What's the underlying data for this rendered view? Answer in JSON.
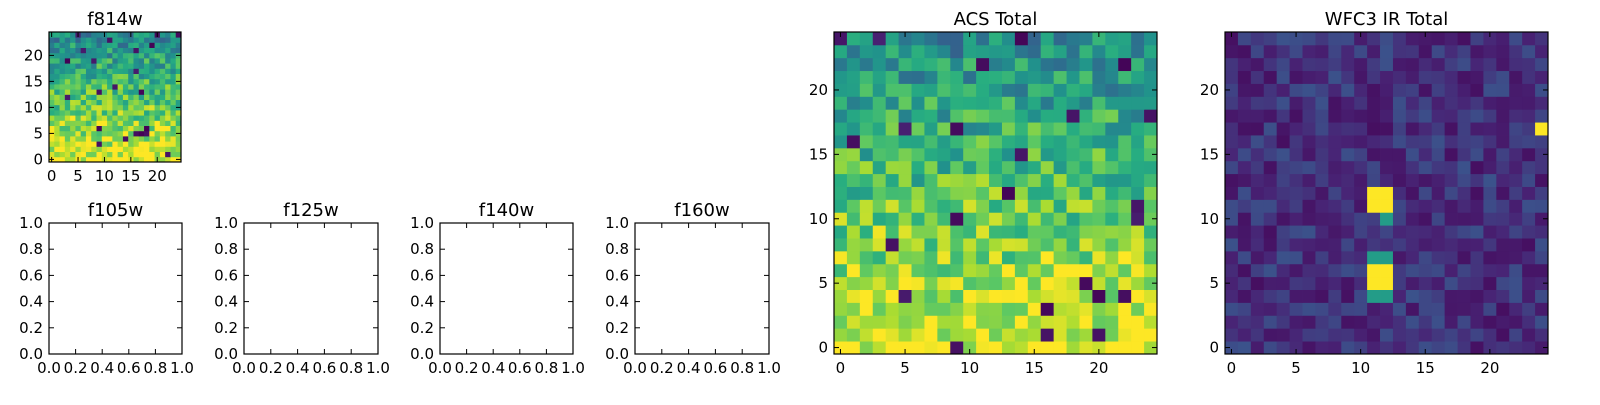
{
  "chart_data": [
    {
      "type": "heatmap",
      "id": "f814w",
      "title": "f814w",
      "xlim": [
        -0.5,
        24.5
      ],
      "ylim": [
        -0.5,
        24.5
      ],
      "xticks": [
        0,
        5,
        10,
        15,
        20
      ],
      "yticks": [
        0,
        5,
        10,
        15,
        20
      ],
      "grid_size": 25,
      "colormap": "viridis",
      "pattern": "bright-bottom"
    },
    {
      "type": "heatmap",
      "id": "f105w",
      "title": "f105w",
      "xlim": [
        0,
        1
      ],
      "ylim": [
        0,
        1
      ],
      "xticks": [
        0.0,
        0.2,
        0.4,
        0.6,
        0.8,
        1.0
      ],
      "yticks": [
        0.0,
        0.2,
        0.4,
        0.6,
        0.8,
        1.0
      ],
      "empty": true
    },
    {
      "type": "heatmap",
      "id": "f125w",
      "title": "f125w",
      "xlim": [
        0,
        1
      ],
      "ylim": [
        0,
        1
      ],
      "xticks": [
        0.0,
        0.2,
        0.4,
        0.6,
        0.8,
        1.0
      ],
      "yticks": [
        0.0,
        0.2,
        0.4,
        0.6,
        0.8,
        1.0
      ],
      "empty": true
    },
    {
      "type": "heatmap",
      "id": "f140w",
      "title": "f140w",
      "xlim": [
        0,
        1
      ],
      "ylim": [
        0,
        1
      ],
      "xticks": [
        0.0,
        0.2,
        0.4,
        0.6,
        0.8,
        1.0
      ],
      "yticks": [
        0.0,
        0.2,
        0.4,
        0.6,
        0.8,
        1.0
      ],
      "empty": true
    },
    {
      "type": "heatmap",
      "id": "f160w",
      "title": "f160w",
      "xlim": [
        0,
        1
      ],
      "ylim": [
        0,
        1
      ],
      "xticks": [
        0.0,
        0.2,
        0.4,
        0.6,
        0.8,
        1.0
      ],
      "yticks": [
        0.0,
        0.2,
        0.4,
        0.6,
        0.8,
        1.0
      ],
      "empty": true
    },
    {
      "type": "heatmap",
      "id": "acs-total",
      "title": "ACS Total",
      "xlim": [
        -0.5,
        24.5
      ],
      "ylim": [
        -0.5,
        24.5
      ],
      "xticks": [
        0,
        5,
        10,
        15,
        20
      ],
      "yticks": [
        0,
        5,
        10,
        15,
        20
      ],
      "grid_size": 25,
      "colormap": "viridis",
      "pattern": "bright-bottom"
    },
    {
      "type": "heatmap",
      "id": "wfc3-ir-total",
      "title": "WFC3 IR Total",
      "xlim": [
        -0.5,
        24.5
      ],
      "ylim": [
        -0.5,
        24.5
      ],
      "xticks": [
        0,
        5,
        10,
        15,
        20
      ],
      "yticks": [
        0,
        5,
        10,
        15,
        20
      ],
      "grid_size": 25,
      "colormap": "viridis",
      "pattern": "dark-with-sources",
      "bright_pixels": [
        [
          11,
          11
        ],
        [
          12,
          11
        ],
        [
          11,
          12
        ],
        [
          12,
          12
        ],
        [
          11,
          5
        ],
        [
          12,
          5
        ],
        [
          11,
          6
        ],
        [
          12,
          6
        ],
        [
          24,
          17
        ]
      ],
      "medium_pixels": [
        [
          12,
          10
        ],
        [
          11,
          4
        ],
        [
          12,
          4
        ],
        [
          11,
          7
        ],
        [
          12,
          7
        ]
      ]
    }
  ]
}
